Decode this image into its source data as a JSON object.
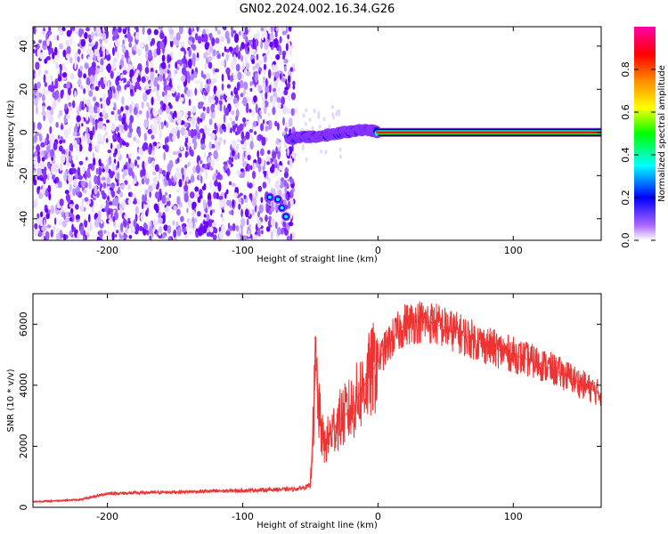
{
  "title": "GN02.2024.002.16.34.G26",
  "chart_data": [
    {
      "type": "heatmap",
      "xlabel": "Height of straight line (km)",
      "ylabel": "Frequency (Hz)",
      "xlim": [
        -255,
        165
      ],
      "ylim": [
        -50,
        49
      ],
      "x_ticks": [
        -200,
        -100,
        0,
        100
      ],
      "y_ticks": [
        -40,
        -20,
        0,
        20,
        40
      ],
      "colorbar": {
        "label": "Normalized spectral amplitude",
        "range": [
          0,
          1
        ],
        "ticks": [
          "0.0",
          "0.2",
          "0.4",
          "0.6",
          "0.8"
        ],
        "colormap": [
          "#ffffff",
          "#8800ff",
          "#0000ff",
          "#00ffff",
          "#00ff00",
          "#ffff00",
          "#ff8800",
          "#ff0000",
          "#ff00ff"
        ]
      },
      "features": {
        "noise_region_x": [
          -255,
          -66
        ],
        "transition_track": [
          {
            "x": -65,
            "y": -3
          },
          {
            "x": -55,
            "y": -2
          },
          {
            "x": -45,
            "y": -2
          },
          {
            "x": -35,
            "y": -1
          },
          {
            "x": -25,
            "y": 0
          },
          {
            "x": -15,
            "y": 1
          },
          {
            "x": -5,
            "y": 1
          },
          {
            "x": 0,
            "y": 0
          }
        ],
        "hook_track": [
          {
            "x": -80,
            "y": -30
          },
          {
            "x": -74,
            "y": -31
          },
          {
            "x": -71,
            "y": -35
          },
          {
            "x": -68,
            "y": -39
          }
        ],
        "carrier_line": {
          "x_start": 0,
          "x_end": 165,
          "y": 0
        }
      }
    },
    {
      "type": "line",
      "xlabel": "Height of straight line (km)",
      "ylabel": "SNR (10 * v/v)",
      "xlim": [
        -255,
        165
      ],
      "ylim": [
        0,
        7000
      ],
      "x_ticks": [
        -200,
        -100,
        0,
        100
      ],
      "y_ticks": [
        0,
        2000,
        4000,
        6000
      ],
      "color": "#ee3333",
      "series": [
        {
          "x": [
            -255,
            -220,
            -200,
            -150,
            -100,
            -60,
            -50,
            -48,
            -46,
            -44,
            -40,
            -35,
            -30,
            -25,
            -20,
            -10,
            0,
            10,
            20,
            30,
            40,
            60,
            80,
            100,
            120,
            140,
            165
          ],
          "values": [
            180,
            250,
            450,
            500,
            550,
            600,
            700,
            2500,
            4800,
            3200,
            2000,
            2400,
            2800,
            3000,
            3200,
            4000,
            4800,
            5500,
            6000,
            6100,
            6050,
            5700,
            5300,
            5000,
            4700,
            4300,
            3700
          ]
        }
      ]
    }
  ]
}
